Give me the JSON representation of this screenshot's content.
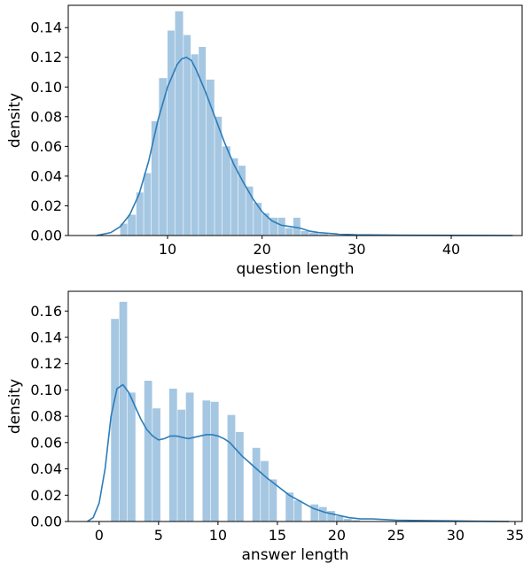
{
  "chart_data": [
    {
      "type": "bar",
      "subtype": "histogram-with-kde",
      "title": "",
      "xlabel": "question length",
      "ylabel": "density",
      "xlim": [
        -0.5,
        47.5
      ],
      "ylim": [
        0,
        0.155
      ],
      "xticks": [
        10,
        20,
        30,
        40
      ],
      "yticks": [
        0.0,
        0.02,
        0.04,
        0.06,
        0.08,
        0.1,
        0.12,
        0.14
      ],
      "bar_color": "#a5c7e2",
      "line_color": "#2d7cb8",
      "bins": [
        {
          "x0": 5.0,
          "x1": 5.8,
          "value": 0.008
        },
        {
          "x0": 5.8,
          "x1": 6.7,
          "value": 0.014
        },
        {
          "x0": 6.7,
          "x1": 7.5,
          "value": 0.029
        },
        {
          "x0": 7.5,
          "x1": 8.3,
          "value": 0.042
        },
        {
          "x0": 8.3,
          "x1": 9.1,
          "value": 0.077
        },
        {
          "x0": 9.1,
          "x1": 10.0,
          "value": 0.106
        },
        {
          "x0": 10.0,
          "x1": 10.8,
          "value": 0.138
        },
        {
          "x0": 10.8,
          "x1": 11.7,
          "value": 0.151
        },
        {
          "x0": 11.7,
          "x1": 12.5,
          "value": 0.135
        },
        {
          "x0": 12.5,
          "x1": 13.3,
          "value": 0.122
        },
        {
          "x0": 13.3,
          "x1": 14.1,
          "value": 0.127
        },
        {
          "x0": 14.1,
          "x1": 15.0,
          "value": 0.105
        },
        {
          "x0": 15.0,
          "x1": 15.8,
          "value": 0.08
        },
        {
          "x0": 15.8,
          "x1": 16.7,
          "value": 0.06
        },
        {
          "x0": 16.7,
          "x1": 17.5,
          "value": 0.052
        },
        {
          "x0": 17.5,
          "x1": 18.3,
          "value": 0.047
        },
        {
          "x0": 18.3,
          "x1": 19.1,
          "value": 0.033
        },
        {
          "x0": 19.1,
          "x1": 20.0,
          "value": 0.022
        },
        {
          "x0": 20.0,
          "x1": 20.8,
          "value": 0.015
        },
        {
          "x0": 20.8,
          "x1": 21.7,
          "value": 0.012
        },
        {
          "x0": 21.7,
          "x1": 22.5,
          "value": 0.012
        },
        {
          "x0": 22.5,
          "x1": 23.3,
          "value": 0.005
        },
        {
          "x0": 23.3,
          "x1": 24.1,
          "value": 0.012
        },
        {
          "x0": 24.1,
          "x1": 25.0,
          "value": 0.003
        },
        {
          "x0": 25.0,
          "x1": 26.0,
          "value": 0.002
        },
        {
          "x0": 26.0,
          "x1": 27.0,
          "value": 0.001
        }
      ],
      "kde": [
        [
          2.5,
          0.0
        ],
        [
          4,
          0.002
        ],
        [
          5,
          0.006
        ],
        [
          6,
          0.014
        ],
        [
          7,
          0.028
        ],
        [
          8,
          0.05
        ],
        [
          9,
          0.078
        ],
        [
          10,
          0.1
        ],
        [
          11,
          0.115
        ],
        [
          11.5,
          0.119
        ],
        [
          12,
          0.12
        ],
        [
          12.5,
          0.118
        ],
        [
          13,
          0.112
        ],
        [
          14,
          0.097
        ],
        [
          15,
          0.08
        ],
        [
          16,
          0.063
        ],
        [
          17,
          0.048
        ],
        [
          18,
          0.036
        ],
        [
          19,
          0.025
        ],
        [
          20,
          0.016
        ],
        [
          21,
          0.01
        ],
        [
          22,
          0.007
        ],
        [
          23,
          0.006
        ],
        [
          24,
          0.005
        ],
        [
          25,
          0.003
        ],
        [
          26,
          0.002
        ],
        [
          28,
          0.001
        ],
        [
          30,
          0.0005
        ],
        [
          35,
          0.0002
        ],
        [
          40,
          0.0001
        ],
        [
          46.5,
          0.0
        ]
      ]
    },
    {
      "type": "bar",
      "subtype": "histogram-with-kde",
      "title": "",
      "xlabel": "answer length",
      "ylabel": "density",
      "xlim": [
        -2.6,
        35.6
      ],
      "ylim": [
        0,
        0.175
      ],
      "xticks": [
        0,
        5,
        10,
        15,
        20,
        25,
        30,
        35
      ],
      "yticks": [
        0.0,
        0.02,
        0.04,
        0.06,
        0.08,
        0.1,
        0.12,
        0.14,
        0.16
      ],
      "bar_color": "#a5c7e2",
      "line_color": "#2d7cb8",
      "bins": [
        {
          "x0": 1.0,
          "x1": 1.7,
          "value": 0.154
        },
        {
          "x0": 1.7,
          "x1": 2.4,
          "value": 0.167
        },
        {
          "x0": 2.4,
          "x1": 3.1,
          "value": 0.098
        },
        {
          "x0": 3.1,
          "x1": 3.8,
          "value": 0.0
        },
        {
          "x0": 3.8,
          "x1": 4.5,
          "value": 0.107
        },
        {
          "x0": 4.5,
          "x1": 5.2,
          "value": 0.086
        },
        {
          "x0": 5.2,
          "x1": 5.9,
          "value": 0.0
        },
        {
          "x0": 5.9,
          "x1": 6.6,
          "value": 0.101
        },
        {
          "x0": 6.6,
          "x1": 7.3,
          "value": 0.085
        },
        {
          "x0": 7.3,
          "x1": 8.0,
          "value": 0.098
        },
        {
          "x0": 8.0,
          "x1": 8.7,
          "value": 0.0
        },
        {
          "x0": 8.7,
          "x1": 9.4,
          "value": 0.092
        },
        {
          "x0": 9.4,
          "x1": 10.1,
          "value": 0.091
        },
        {
          "x0": 10.1,
          "x1": 10.8,
          "value": 0.0
        },
        {
          "x0": 10.8,
          "x1": 11.5,
          "value": 0.081
        },
        {
          "x0": 11.5,
          "x1": 12.2,
          "value": 0.068
        },
        {
          "x0": 12.2,
          "x1": 12.9,
          "value": 0.0
        },
        {
          "x0": 12.9,
          "x1": 13.6,
          "value": 0.056
        },
        {
          "x0": 13.6,
          "x1": 14.3,
          "value": 0.046
        },
        {
          "x0": 14.3,
          "x1": 15.0,
          "value": 0.032
        },
        {
          "x0": 15.0,
          "x1": 15.7,
          "value": 0.0
        },
        {
          "x0": 15.7,
          "x1": 16.4,
          "value": 0.022
        },
        {
          "x0": 16.4,
          "x1": 17.1,
          "value": 0.016
        },
        {
          "x0": 17.1,
          "x1": 17.8,
          "value": 0.0
        },
        {
          "x0": 17.8,
          "x1": 18.5,
          "value": 0.013
        },
        {
          "x0": 18.5,
          "x1": 19.2,
          "value": 0.011
        },
        {
          "x0": 19.2,
          "x1": 19.9,
          "value": 0.008
        },
        {
          "x0": 19.9,
          "x1": 20.6,
          "value": 0.004
        },
        {
          "x0": 20.6,
          "x1": 21.3,
          "value": 0.002
        },
        {
          "x0": 21.3,
          "x1": 22.0,
          "value": 0.001
        }
      ],
      "kde": [
        [
          -1.0,
          0.0
        ],
        [
          -0.5,
          0.003
        ],
        [
          0.0,
          0.014
        ],
        [
          0.5,
          0.04
        ],
        [
          1.0,
          0.08
        ],
        [
          1.5,
          0.101
        ],
        [
          2.0,
          0.104
        ],
        [
          2.5,
          0.098
        ],
        [
          3.0,
          0.088
        ],
        [
          3.5,
          0.078
        ],
        [
          4.0,
          0.07
        ],
        [
          4.5,
          0.065
        ],
        [
          5.0,
          0.062
        ],
        [
          5.5,
          0.063
        ],
        [
          6.0,
          0.065
        ],
        [
          6.5,
          0.065
        ],
        [
          7.0,
          0.064
        ],
        [
          7.5,
          0.063
        ],
        [
          8.0,
          0.064
        ],
        [
          8.5,
          0.065
        ],
        [
          9.0,
          0.066
        ],
        [
          9.5,
          0.066
        ],
        [
          10.0,
          0.065
        ],
        [
          10.5,
          0.063
        ],
        [
          11.0,
          0.06
        ],
        [
          11.5,
          0.055
        ],
        [
          12.0,
          0.05
        ],
        [
          13.0,
          0.042
        ],
        [
          14.0,
          0.034
        ],
        [
          15.0,
          0.027
        ],
        [
          16.0,
          0.02
        ],
        [
          17.0,
          0.015
        ],
        [
          18.0,
          0.01
        ],
        [
          19.0,
          0.007
        ],
        [
          20.0,
          0.005
        ],
        [
          21.0,
          0.003
        ],
        [
          22.0,
          0.002
        ],
        [
          23.0,
          0.002
        ],
        [
          25.0,
          0.001
        ],
        [
          28.0,
          0.0006
        ],
        [
          31.0,
          0.0003
        ],
        [
          34.5,
          0.0
        ]
      ]
    }
  ]
}
